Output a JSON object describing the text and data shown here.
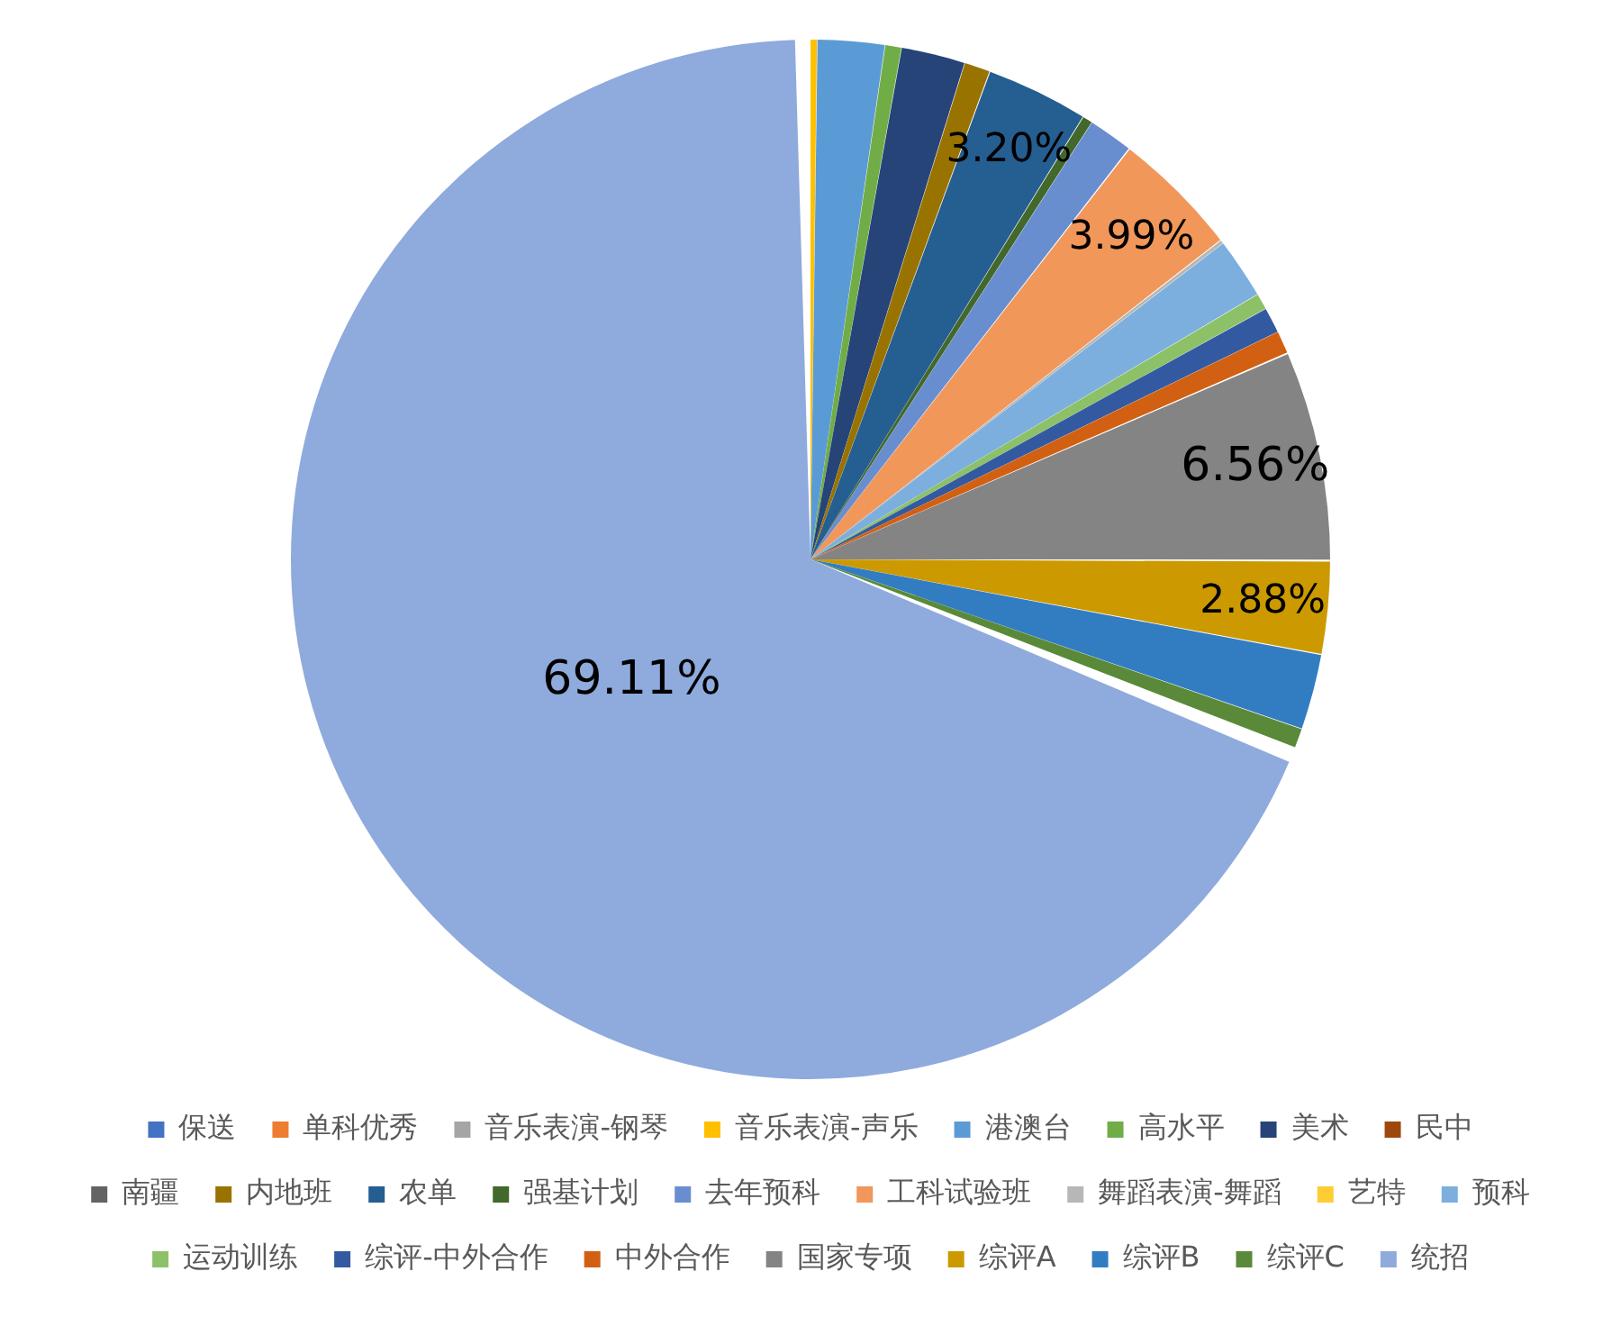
{
  "chart_data": {
    "type": "pie",
    "categories": [
      "保送",
      "单科优秀",
      "音乐表演-钢琴",
      "音乐表演-声乐",
      "港澳台",
      "高水平",
      "美术",
      "民中",
      "南疆",
      "内地班",
      "农单",
      "强基计划",
      "去年预科",
      "工科试验班",
      "舞蹈表演-舞蹈",
      "艺特",
      "预科",
      "运动训练",
      "综评-中外合作",
      "中外合作",
      "国家专项",
      "综评A",
      "综评B",
      "综评C",
      "统招"
    ],
    "values": [
      0,
      0,
      0,
      0.2,
      2.1,
      0.5,
      2.0,
      0,
      0,
      0.8,
      3.2,
      0.3,
      1.4,
      3.99,
      0.1,
      0,
      1.9,
      0.5,
      0.8,
      0.7,
      6.56,
      2.88,
      2.36,
      0.6,
      69.11
    ],
    "colors": [
      "#4472c4",
      "#ed7d31",
      "#a5a5a5",
      "#ffc000",
      "#5b9bd5",
      "#70ad47",
      "#264478",
      "#9e480e",
      "#636363",
      "#997300",
      "#255e91",
      "#43682b",
      "#698ed0",
      "#f1975a",
      "#b7b7b7",
      "#ffcd33",
      "#7cafdd",
      "#8cc168",
      "#335aa1",
      "#d26012",
      "#848484",
      "#cc9a00",
      "#327dc2",
      "#5a8a39",
      "#8faadc"
    ],
    "value_labels": [
      null,
      null,
      null,
      null,
      null,
      null,
      null,
      null,
      null,
      null,
      "3.20%",
      null,
      null,
      "3.99%",
      null,
      null,
      null,
      null,
      null,
      null,
      "6.56%",
      "2.88%",
      null,
      null,
      "69.11%"
    ],
    "legend": "bottom"
  }
}
